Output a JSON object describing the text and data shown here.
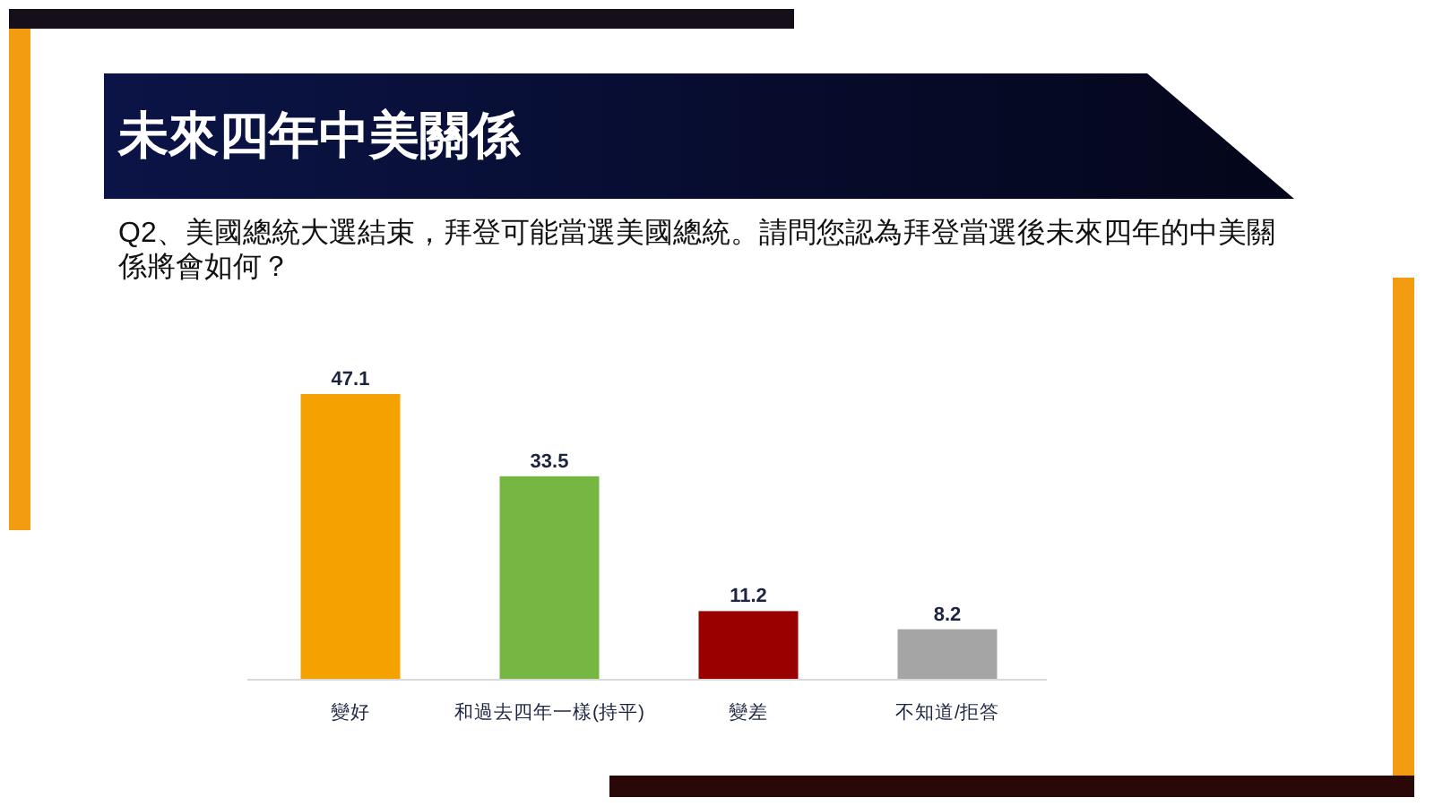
{
  "chart_data": {
    "type": "bar",
    "title": "未來四年中美關係",
    "subtitle": "Q2、美國總統大選結束，拜登可能當選美國總統。請問您認為拜登當選後未來四年的中美關係將會如何？",
    "categories": [
      "變好",
      "和過去四年一樣(持平)",
      "變差",
      "不知道/拒答"
    ],
    "values": [
      47.1,
      33.5,
      11.2,
      8.2
    ],
    "colors": [
      "#f5a100",
      "#76b743",
      "#990000",
      "#a5a5a5"
    ],
    "data_labels": true
  }
}
